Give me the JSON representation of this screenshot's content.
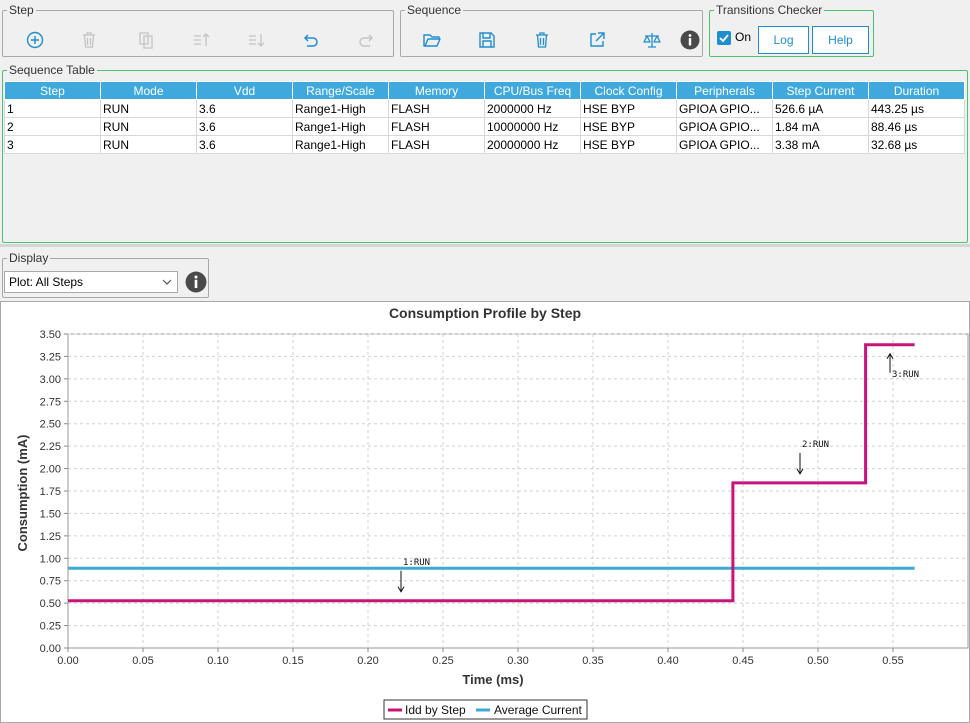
{
  "step_group": {
    "title": "Step",
    "tools": [
      {
        "name": "add-step-button",
        "icon": "plus-circle-icon",
        "enabled": true
      },
      {
        "name": "delete-step-button",
        "icon": "trash-icon",
        "enabled": false
      },
      {
        "name": "duplicate-step-button",
        "icon": "copy-icon",
        "enabled": false
      },
      {
        "name": "move-step-up-button",
        "icon": "move-up-icon",
        "enabled": false
      },
      {
        "name": "move-step-down-button",
        "icon": "move-down-icon",
        "enabled": false
      },
      {
        "name": "undo-button",
        "icon": "undo-icon",
        "enabled": true
      },
      {
        "name": "redo-button",
        "icon": "redo-icon",
        "enabled": false
      }
    ]
  },
  "sequence_group": {
    "title": "Sequence",
    "tools": [
      {
        "name": "open-sequence-button",
        "icon": "folder-open-icon"
      },
      {
        "name": "save-sequence-button",
        "icon": "save-icon"
      },
      {
        "name": "delete-sequence-button",
        "icon": "trash-icon"
      },
      {
        "name": "export-sequence-button",
        "icon": "export-icon"
      },
      {
        "name": "compare-sequence-button",
        "icon": "balance-icon"
      },
      {
        "name": "sequence-info-button",
        "icon": "info-icon"
      }
    ]
  },
  "transitions": {
    "title": "Transitions Checker",
    "checkbox_label": "On",
    "checked": true,
    "log_label": "Log",
    "help_label": "Help"
  },
  "sequence_table": {
    "title": "Sequence Table",
    "columns": [
      "Step",
      "Mode",
      "Vdd",
      "Range/Scale",
      "Memory",
      "CPU/Bus Freq",
      "Clock Config",
      "Peripherals",
      "Step Current",
      "Duration"
    ],
    "rows": [
      [
        "1",
        "RUN",
        "3.6",
        "Range1-High",
        "FLASH",
        "2000000 Hz",
        "HSE BYP",
        "GPIOA GPIO...",
        "526.6 µA",
        "443.25 µs"
      ],
      [
        "2",
        "RUN",
        "3.6",
        "Range1-High",
        "FLASH",
        "10000000 Hz",
        "HSE BYP",
        "GPIOA GPIO...",
        "1.84 mA",
        "88.46 µs"
      ],
      [
        "3",
        "RUN",
        "3.6",
        "Range1-High",
        "FLASH",
        "20000000 Hz",
        "HSE BYP",
        "GPIOA GPIO...",
        "3.38 mA",
        "32.68 µs"
      ]
    ]
  },
  "display": {
    "title": "Display",
    "selected": "Plot: All Steps",
    "info_icon": "info-icon"
  },
  "colors": {
    "accent": "#1f8dd0",
    "header": "#3fa9dd",
    "idd": "#c8137b",
    "average": "#3fa9d6",
    "green_border": "#4cc36c"
  },
  "chart_data": {
    "type": "line",
    "title": "Consumption Profile by Step",
    "xlabel": "Time (ms)",
    "ylabel": "Consumption (mA)",
    "xlim": [
      0,
      0.6
    ],
    "ylim": [
      0,
      3.5
    ],
    "xticks": [
      "0.00",
      "0.05",
      "0.10",
      "0.15",
      "0.20",
      "0.25",
      "0.30",
      "0.35",
      "0.40",
      "0.45",
      "0.50",
      "0.55"
    ],
    "yticks": [
      "0.00",
      "0.25",
      "0.50",
      "0.75",
      "1.00",
      "1.25",
      "1.50",
      "1.75",
      "2.00",
      "2.25",
      "2.50",
      "2.75",
      "3.00",
      "3.25",
      "3.50"
    ],
    "grid": true,
    "legend": "bottom-center",
    "series": [
      {
        "name": "Idd by Step",
        "color": "#c8137b",
        "step": true,
        "x": [
          0,
          0.44325,
          0.44325,
          0.53171,
          0.53171,
          0.56439
        ],
        "y": [
          0.5266,
          0.5266,
          1.84,
          1.84,
          3.38,
          3.38
        ]
      },
      {
        "name": "Average Current",
        "color": "#3fa9d6",
        "x": [
          0,
          0.56439
        ],
        "y": [
          0.89,
          0.89
        ]
      }
    ],
    "annotations": [
      {
        "text": "1:RUN",
        "x": 0.222,
        "y": 0.5266,
        "dir": "down"
      },
      {
        "text": "2:RUN",
        "x": 0.488,
        "y": 1.84,
        "dir": "down"
      },
      {
        "text": "3:RUN",
        "x": 0.548,
        "y": 3.38,
        "dir": "up"
      }
    ]
  }
}
